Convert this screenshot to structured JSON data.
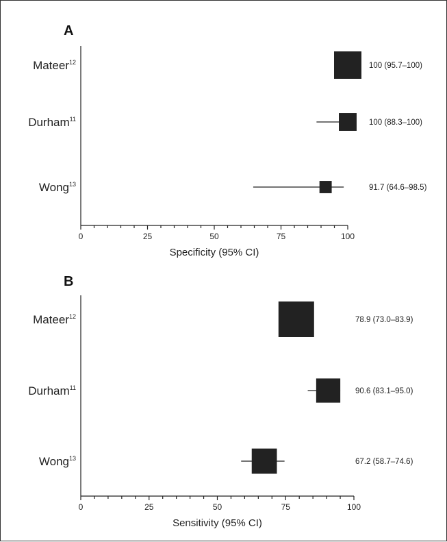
{
  "chart_data": [
    {
      "type": "forest",
      "panel": "A",
      "xlabel": "Specificity (95% CI)",
      "xlim": [
        0,
        100
      ],
      "ticks": [
        0,
        25,
        50,
        75,
        100
      ],
      "minor_tick_step": 5,
      "studies": [
        {
          "name": "Mateer",
          "ref": "12",
          "estimate": 100,
          "lower": 95.7,
          "upper": 100,
          "weight": 1.0,
          "label": "100 (95.7–100)"
        },
        {
          "name": "Durham",
          "ref": "11",
          "estimate": 100,
          "lower": 88.3,
          "upper": 100,
          "weight": 0.42,
          "label": "100 (88.3–100)"
        },
        {
          "name": "Wong",
          "ref": "13",
          "estimate": 91.7,
          "lower": 64.6,
          "upper": 98.5,
          "weight": 0.2,
          "label": "91.7 (64.6–98.5)"
        }
      ]
    },
    {
      "type": "forest",
      "panel": "B",
      "xlabel": "Sensitivity (95% CI)",
      "xlim": [
        0,
        100
      ],
      "ticks": [
        0,
        25,
        50,
        75,
        100
      ],
      "minor_tick_step": 5,
      "studies": [
        {
          "name": "Mateer",
          "ref": "12",
          "estimate": 78.9,
          "lower": 73.0,
          "upper": 83.9,
          "weight": 1.0,
          "label": "78.9 (73.0–83.9)"
        },
        {
          "name": "Durham",
          "ref": "11",
          "estimate": 90.6,
          "lower": 83.1,
          "upper": 95.0,
          "weight": 0.46,
          "label": "90.6 (83.1–95.0)"
        },
        {
          "name": "Wong",
          "ref": "13",
          "estimate": 67.2,
          "lower": 58.7,
          "upper": 74.6,
          "weight": 0.5,
          "label": "67.2 (58.7–74.6)"
        }
      ]
    }
  ]
}
